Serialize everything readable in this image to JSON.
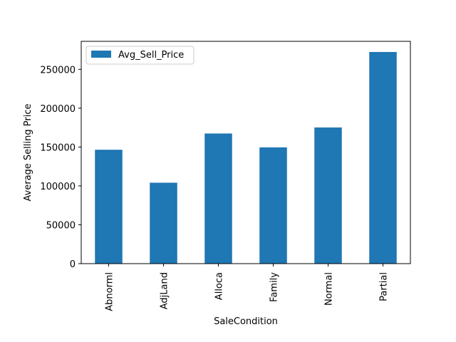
{
  "chart_data": {
    "type": "bar",
    "categories": [
      "Abnorml",
      "AdjLand",
      "Alloca",
      "Family",
      "Normal",
      "Partial"
    ],
    "series": [
      {
        "name": "Avg_Sell_Price",
        "values": [
          146500,
          104100,
          167400,
          149600,
          175200,
          272300
        ],
        "color": "#1f77b4"
      }
    ],
    "xlabel": "SaleCondition",
    "ylabel": "Average Selling Price",
    "ylim": [
      0,
      286000
    ],
    "yticks": [
      0,
      50000,
      100000,
      150000,
      200000,
      250000
    ],
    "ytick_labels": [
      "0",
      "50000",
      "100000",
      "150000",
      "200000",
      "250000"
    ],
    "legend_position": "upper-left",
    "grid": false,
    "tick_label_rotation": "vertical"
  }
}
